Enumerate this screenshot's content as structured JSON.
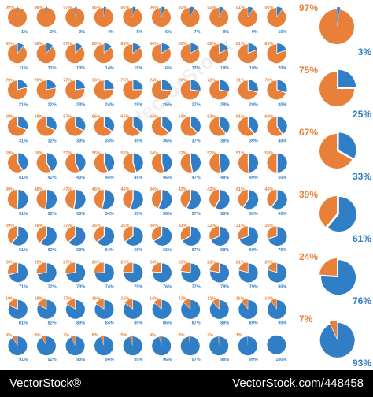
{
  "colors": {
    "remaining": "#e8803a",
    "portion": "#2f7ec6",
    "background": "#ffffff",
    "footer_bg": "#000000",
    "footer_text": "#ffffff"
  },
  "grid": {
    "rows": 10,
    "cols": 10,
    "start_percent": 1,
    "end_percent": 100
  },
  "large_charts": [
    {
      "portion": 3,
      "remaining": 97,
      "portion_label": "3%",
      "remaining_label": "97%"
    },
    {
      "portion": 25,
      "remaining": 75,
      "portion_label": "25%",
      "remaining_label": "75%"
    },
    {
      "portion": 33,
      "remaining": 67,
      "portion_label": "33%",
      "remaining_label": "67%"
    },
    {
      "portion": 61,
      "remaining": 39,
      "portion_label": "61%",
      "remaining_label": "39%"
    },
    {
      "portion": 76,
      "remaining": 24,
      "portion_label": "76%",
      "remaining_label": "24%"
    },
    {
      "portion": 93,
      "remaining": 7,
      "portion_label": "93%",
      "remaining_label": "7%"
    }
  ],
  "watermark": "VectorStock",
  "footer": {
    "site": "VectorStock®",
    "url": "VectorStock.com/448458"
  }
}
